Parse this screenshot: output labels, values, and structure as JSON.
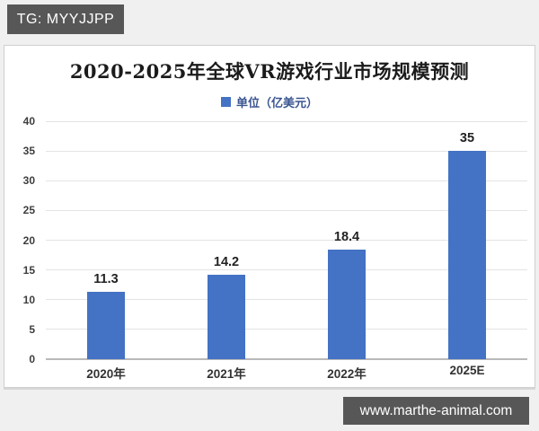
{
  "watermarks": {
    "top_left": "TG: MYYJJPP",
    "bottom_right": "www.marthe-animal.com"
  },
  "chart_data": {
    "type": "bar",
    "title": "2020-2025年全球VR游戏行业市场规模预测",
    "legend_label": "单位（亿美元）",
    "legend_position": "top",
    "categories": [
      "2020年",
      "2021年",
      "2022年",
      "2025E"
    ],
    "values": [
      11.3,
      14.2,
      18.4,
      35
    ],
    "value_labels": [
      "11.3",
      "14.2",
      "18.4",
      "35"
    ],
    "ylim": [
      0,
      40
    ],
    "yticks": [
      0,
      5,
      10,
      15,
      20,
      25,
      30,
      35,
      40
    ],
    "grid": true,
    "xlabel": "",
    "ylabel": "",
    "bar_color": "#4472C4",
    "grid_color": "#e4e4e4",
    "baseline_color": "#b9b9b9"
  }
}
